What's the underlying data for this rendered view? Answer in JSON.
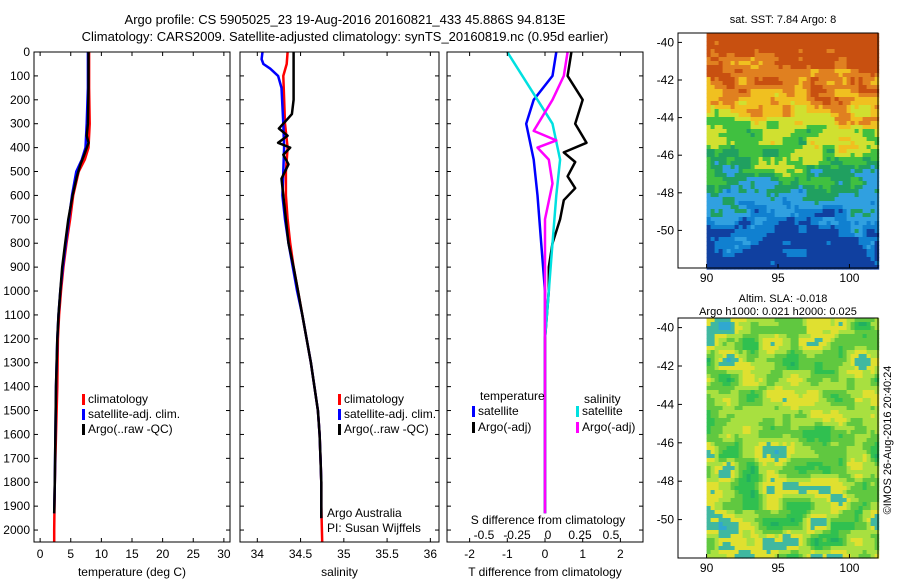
{
  "header": {
    "line1": "Argo profile: CS 5905025_23 19-Aug-2016 20160821_433 45.886S 94.813E",
    "line2": "Climatology: CARS2009. Satellite-adjusted climatology: synTS_20160819.nc (0.95d earlier)"
  },
  "credit": "©IMOS 26-Aug-2016 20:40:24",
  "chart_data": [
    {
      "id": "temperature",
      "type": "line",
      "xlabel": "temperature (deg C)",
      "xlim": [
        -1,
        31
      ],
      "xticks": [
        0,
        5,
        10,
        15,
        20,
        25,
        30
      ],
      "ylim": [
        0,
        2050
      ],
      "yticks": [
        0,
        100,
        200,
        300,
        400,
        500,
        600,
        700,
        800,
        900,
        1000,
        1100,
        1200,
        1300,
        1400,
        1500,
        1600,
        1700,
        1800,
        1900,
        2000
      ],
      "legend": [
        "climatology",
        "satellite-adj. clim.",
        "Argo(..raw -QC)"
      ],
      "series": [
        {
          "name": "climatology",
          "color": "#ff0000",
          "points": [
            [
              8.0,
              0
            ],
            [
              8.0,
              150
            ],
            [
              8.1,
              300
            ],
            [
              7.9,
              400
            ],
            [
              7.3,
              450
            ],
            [
              6.3,
              500
            ],
            [
              5.4,
              600
            ],
            [
              4.9,
              700
            ],
            [
              4.3,
              800
            ],
            [
              3.8,
              900
            ],
            [
              3.4,
              1000
            ],
            [
              3.1,
              1100
            ],
            [
              2.9,
              1200
            ],
            [
              2.8,
              1400
            ],
            [
              2.6,
              1600
            ],
            [
              2.4,
              1800
            ],
            [
              2.3,
              2000
            ],
            [
              2.3,
              2050
            ]
          ]
        },
        {
          "name": "satellite-adj. clim.",
          "color": "#0000ff",
          "points": [
            [
              7.8,
              0
            ],
            [
              7.8,
              150
            ],
            [
              7.6,
              300
            ],
            [
              7.4,
              400
            ],
            [
              6.8,
              450
            ],
            [
              5.9,
              500
            ],
            [
              5.2,
              600
            ],
            [
              4.7,
              700
            ],
            [
              4.2,
              800
            ],
            [
              3.7,
              900
            ],
            [
              3.3,
              1000
            ],
            [
              3.0,
              1100
            ],
            [
              2.8,
              1200
            ],
            [
              2.6,
              1400
            ],
            [
              2.5,
              1600
            ],
            [
              2.4,
              1800
            ],
            [
              2.3,
              1930
            ]
          ]
        },
        {
          "name": "Argo(..raw -QC)",
          "color": "#000000",
          "points": [
            [
              7.9,
              0
            ],
            [
              7.9,
              150
            ],
            [
              7.8,
              300
            ],
            [
              7.6,
              350
            ],
            [
              7.9,
              380
            ],
            [
              7.2,
              430
            ],
            [
              6.6,
              470
            ],
            [
              6.0,
              520
            ],
            [
              5.3,
              600
            ],
            [
              4.6,
              700
            ],
            [
              4.1,
              800
            ],
            [
              3.6,
              900
            ],
            [
              3.3,
              1000
            ],
            [
              3.0,
              1100
            ],
            [
              2.8,
              1200
            ],
            [
              2.6,
              1400
            ],
            [
              2.5,
              1600
            ],
            [
              2.4,
              1800
            ],
            [
              2.3,
              1930
            ]
          ]
        }
      ]
    },
    {
      "id": "salinity",
      "type": "line",
      "xlabel": "salinity",
      "xlim": [
        33.8,
        36.1
      ],
      "xticks": [
        34,
        34.5,
        35,
        35.5,
        36
      ],
      "ylim": [
        0,
        2050
      ],
      "legend": [
        "climatology",
        "satellite-adj. clim.",
        "Argo(..raw -QC)"
      ],
      "annotation": [
        "Argo Australia",
        "PI: Susan Wijffels"
      ],
      "series": [
        {
          "name": "climatology",
          "color": "#ff0000",
          "points": [
            [
              34.35,
              0
            ],
            [
              34.34,
              50
            ],
            [
              34.3,
              100
            ],
            [
              34.32,
              300
            ],
            [
              34.35,
              400
            ],
            [
              34.33,
              500
            ],
            [
              34.33,
              600
            ],
            [
              34.35,
              700
            ],
            [
              34.38,
              800
            ],
            [
              34.42,
              900
            ],
            [
              34.47,
              1000
            ],
            [
              34.52,
              1100
            ],
            [
              34.57,
              1200
            ],
            [
              34.62,
              1300
            ],
            [
              34.66,
              1400
            ],
            [
              34.7,
              1500
            ],
            [
              34.72,
              1600
            ],
            [
              34.73,
              1700
            ],
            [
              34.74,
              1800
            ],
            [
              34.74,
              1900
            ],
            [
              34.75,
              2050
            ]
          ]
        },
        {
          "name": "satellite-adj. clim.",
          "color": "#0000ff",
          "points": [
            [
              34.06,
              0
            ],
            [
              34.05,
              30
            ],
            [
              34.07,
              50
            ],
            [
              34.15,
              70
            ],
            [
              34.24,
              100
            ],
            [
              34.28,
              150
            ],
            [
              34.3,
              300
            ],
            [
              34.31,
              400
            ],
            [
              34.3,
              500
            ],
            [
              34.29,
              600
            ],
            [
              34.32,
              700
            ],
            [
              34.36,
              800
            ],
            [
              34.41,
              900
            ],
            [
              34.46,
              1000
            ],
            [
              34.52,
              1100
            ],
            [
              34.57,
              1200
            ],
            [
              34.62,
              1300
            ],
            [
              34.66,
              1400
            ],
            [
              34.7,
              1500
            ],
            [
              34.72,
              1600
            ],
            [
              34.73,
              1700
            ],
            [
              34.74,
              1800
            ],
            [
              34.74,
              1900
            ],
            [
              34.74,
              1950
            ]
          ]
        },
        {
          "name": "Argo(..raw -QC)",
          "color": "#000000",
          "points": [
            [
              34.42,
              0
            ],
            [
              34.42,
              100
            ],
            [
              34.42,
              200
            ],
            [
              34.4,
              260
            ],
            [
              34.35,
              280
            ],
            [
              34.25,
              320
            ],
            [
              34.35,
              350
            ],
            [
              34.24,
              380
            ],
            [
              34.38,
              400
            ],
            [
              34.3,
              430
            ],
            [
              34.36,
              470
            ],
            [
              34.28,
              530
            ],
            [
              34.3,
              600
            ],
            [
              34.33,
              700
            ],
            [
              34.36,
              800
            ],
            [
              34.42,
              900
            ],
            [
              34.47,
              1000
            ],
            [
              34.52,
              1100
            ],
            [
              34.57,
              1200
            ],
            [
              34.62,
              1300
            ],
            [
              34.66,
              1400
            ],
            [
              34.7,
              1500
            ],
            [
              34.72,
              1600
            ],
            [
              34.73,
              1700
            ],
            [
              34.74,
              1800
            ],
            [
              34.74,
              1950
            ]
          ]
        }
      ]
    },
    {
      "id": "difference",
      "type": "line",
      "xlabel": "T difference from climatology",
      "top_axis_label": "S difference from climatology",
      "xlim": [
        -2.6,
        2.6
      ],
      "xticks": [
        -2,
        -1,
        0,
        1,
        2
      ],
      "top_ticks": [
        "-0.5",
        "-0.25",
        "0",
        "0.25",
        "0.5"
      ],
      "ylim": [
        0,
        2050
      ],
      "legend_temperature_title": "temperature",
      "legend_salinity_title": "salinity",
      "legend": [
        "satellite",
        "Argo(-adj)",
        "satellite",
        "Argo(-adj)"
      ],
      "series": [
        {
          "name": "satellite",
          "group": "temperature",
          "color": "#0000ff",
          "points": [
            [
              0.3,
              0
            ],
            [
              0.2,
              100
            ],
            [
              -0.3,
              200
            ],
            [
              -0.5,
              300
            ],
            [
              -0.3,
              450
            ],
            [
              -0.2,
              600
            ],
            [
              -0.1,
              800
            ],
            [
              0.0,
              1000
            ],
            [
              0.0,
              1200
            ],
            [
              0.0,
              1500
            ],
            [
              0.0,
              1930
            ]
          ]
        },
        {
          "name": "Argo(-adj)",
          "group": "temperature",
          "color": "#000000",
          "points": [
            [
              0.7,
              0
            ],
            [
              0.6,
              100
            ],
            [
              1.0,
              200
            ],
            [
              0.8,
              300
            ],
            [
              1.1,
              380
            ],
            [
              0.5,
              420
            ],
            [
              0.8,
              460
            ],
            [
              0.6,
              520
            ],
            [
              0.8,
              570
            ],
            [
              0.5,
              620
            ],
            [
              0.4,
              700
            ],
            [
              0.2,
              800
            ],
            [
              0.1,
              900
            ],
            [
              0.1,
              1000
            ],
            [
              0.0,
              1200
            ],
            [
              0.0,
              1500
            ],
            [
              0.0,
              1930
            ]
          ]
        },
        {
          "name": "satellite",
          "group": "salinity",
          "color": "#00e0e0",
          "points": [
            [
              -1.0,
              0
            ],
            [
              -0.6,
              100
            ],
            [
              -0.2,
              200
            ],
            [
              0.2,
              300
            ],
            [
              0.4,
              450
            ],
            [
              0.3,
              600
            ],
            [
              0.2,
              800
            ],
            [
              0.1,
              1000
            ],
            [
              0.0,
              1200
            ],
            [
              0.0,
              1500
            ],
            [
              0.0,
              1930
            ]
          ]
        },
        {
          "name": "Argo(-adj)",
          "group": "salinity",
          "color": "#ff00ff",
          "points": [
            [
              0.6,
              0
            ],
            [
              0.5,
              100
            ],
            [
              0.2,
              200
            ],
            [
              -0.3,
              330
            ],
            [
              0.3,
              370
            ],
            [
              -0.2,
              400
            ],
            [
              0.1,
              450
            ],
            [
              0.2,
              550
            ],
            [
              0.0,
              700
            ],
            [
              0.0,
              900
            ],
            [
              0.0,
              1200
            ],
            [
              0.0,
              1500
            ],
            [
              0.0,
              1930
            ]
          ]
        }
      ]
    },
    {
      "id": "sst-map",
      "type": "heatmap",
      "title": "sat. SST: 7.84 Argo: 8",
      "xlim": [
        88,
        102
      ],
      "ylim": [
        -52,
        -39.5
      ],
      "xticks": [
        90,
        95,
        100
      ],
      "yticks": [
        -40,
        -42,
        -44,
        -46,
        -48,
        -50
      ],
      "colors": [
        "#c85010",
        "#e08020",
        "#f0c020",
        "#d0e030",
        "#40c040",
        "#20a060",
        "#30a0e0",
        "#1080d0",
        "#1040a0"
      ]
    },
    {
      "id": "sla-map",
      "type": "heatmap",
      "title": "Altim. SLA: -0.018",
      "subtitle": "Argo h1000: 0.021 h2000: 0.025",
      "xlim": [
        88,
        102
      ],
      "ylim": [
        -52,
        -39.5
      ],
      "xticks": [
        90,
        95,
        100
      ],
      "yticks": [
        -40,
        -42,
        -44,
        -46,
        -48,
        -50
      ],
      "colors": [
        "#20b060",
        "#30c050",
        "#60c840",
        "#a8e040",
        "#e0e030",
        "#40b8a0",
        "#30a8d0"
      ]
    }
  ]
}
